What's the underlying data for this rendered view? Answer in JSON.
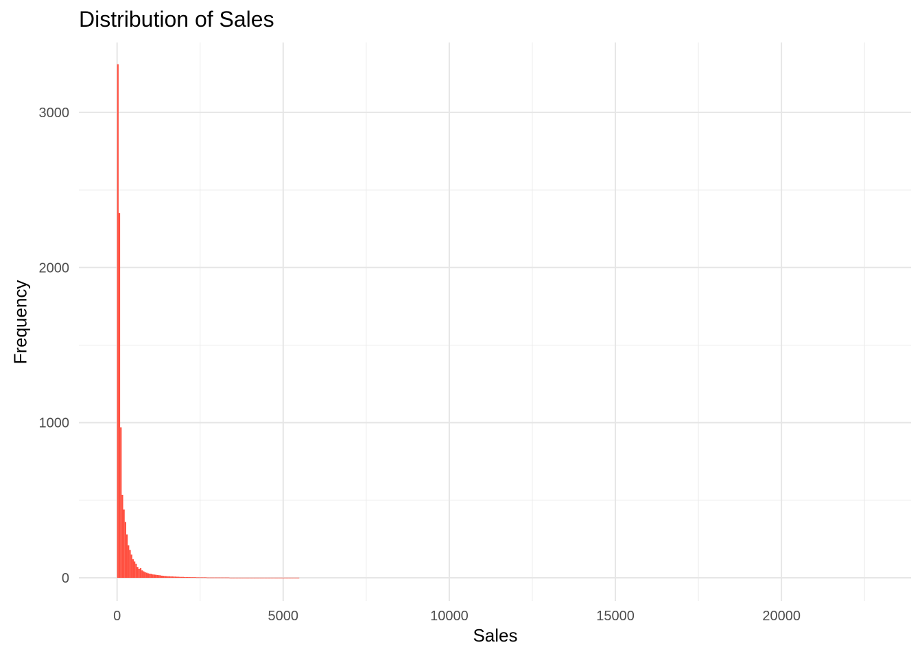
{
  "chart_data": {
    "type": "bar",
    "title": "Distribution of Sales",
    "xlabel": "Sales",
    "ylabel": "Frequency",
    "xlim": [
      -1150,
      23900
    ],
    "ylim": [
      -150,
      3450
    ],
    "x_ticks": [
      0,
      5000,
      10000,
      15000,
      20000
    ],
    "x_minor_ticks": [
      2500,
      7500,
      12500,
      17500,
      22500
    ],
    "y_ticks": [
      0,
      1000,
      2000,
      3000
    ],
    "y_minor_ticks": [
      500,
      1500,
      2500
    ],
    "x_tick_labels": [
      "0",
      "5000",
      "10000",
      "15000",
      "20000"
    ],
    "y_tick_labels": [
      "0",
      "1000",
      "2000",
      "3000"
    ],
    "bin_width": 45.7,
    "bin_start": 0,
    "bar_color": "#ff4f3f",
    "grid": true,
    "values": [
      3310,
      2350,
      970,
      535,
      440,
      360,
      280,
      210,
      180,
      150,
      120,
      105,
      90,
      70,
      58,
      62,
      48,
      42,
      36,
      33,
      29,
      27,
      26,
      22,
      21,
      20,
      18,
      17,
      16,
      14,
      13,
      12,
      11,
      10,
      10,
      9,
      9,
      8,
      8,
      7,
      7,
      6,
      6,
      6,
      5,
      5,
      5,
      5,
      4,
      4,
      4,
      4,
      3,
      3,
      3,
      3,
      3,
      3,
      3,
      2,
      2,
      2,
      2,
      2,
      2,
      2,
      2,
      2,
      2,
      2,
      2,
      2,
      2,
      2,
      1,
      1,
      1,
      1,
      1,
      1,
      1,
      1,
      1,
      1,
      1,
      1,
      1,
      1,
      1,
      1,
      1,
      1,
      1,
      1,
      1,
      1,
      1,
      1,
      1,
      1,
      1,
      1,
      1,
      1,
      1,
      1,
      1,
      1,
      1,
      1,
      1,
      1,
      1,
      1,
      1,
      1,
      1,
      1,
      1,
      1
    ]
  }
}
